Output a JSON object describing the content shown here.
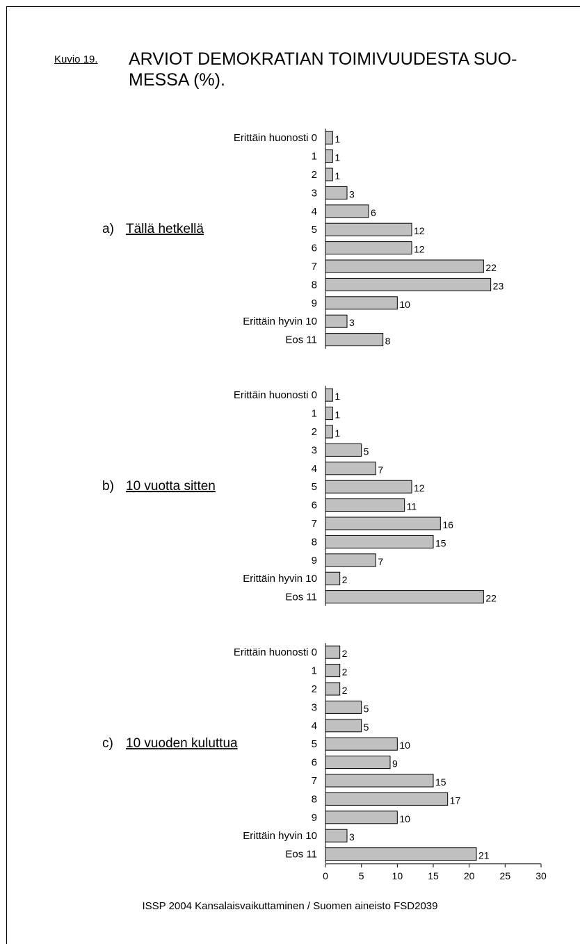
{
  "figure": {
    "label": "Kuvio 19.",
    "title": "ARVIOT DEMOKRATIAN TOIMIVUUDESTA SUOMESSA (%).",
    "title_line1": "ARVIOT DEMOKRATIAN TOIMIVUUDESTA SUO-",
    "title_line2": "MESSA (%).",
    "source": "ISSP 2004  Kansalaisvaikuttaminen / Suomen aineisto  FSD2039"
  },
  "chart_data": {
    "type": "bar",
    "orientation": "horizontal",
    "categories": [
      "Erittäin huonosti 0",
      "1",
      "2",
      "3",
      "4",
      "5",
      "6",
      "7",
      "8",
      "9",
      "Erittäin hyvin 10",
      "Eos 11"
    ],
    "xlim": [
      0,
      30
    ],
    "xticks": [
      0,
      5,
      10,
      15,
      20,
      25,
      30
    ],
    "grid": false,
    "bar_color": "#c0c0c0",
    "series": [
      {
        "name": "a) Tällä hetkellä",
        "prefix": "a)",
        "label": "Tällä hetkellä",
        "values": [
          1,
          1,
          1,
          3,
          6,
          12,
          12,
          22,
          23,
          10,
          3,
          8
        ]
      },
      {
        "name": "b) 10 vuotta sitten",
        "prefix": "b)",
        "label": "10 vuotta sitten",
        "values": [
          1,
          1,
          1,
          5,
          7,
          12,
          11,
          16,
          15,
          7,
          2,
          22
        ]
      },
      {
        "name": "c) 10 vuoden kuluttua",
        "prefix": "c)",
        "label": "10 vuoden kuluttua",
        "values": [
          2,
          2,
          2,
          5,
          5,
          10,
          9,
          15,
          17,
          10,
          3,
          21
        ]
      }
    ]
  }
}
